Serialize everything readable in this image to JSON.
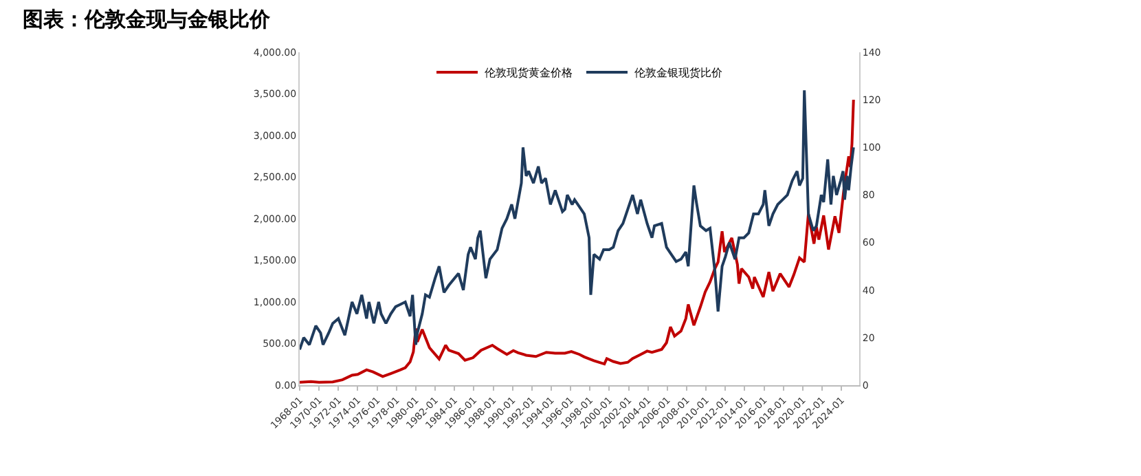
{
  "chart_data": {
    "type": "line",
    "title": "图表：伦敦金现与金银比价",
    "xlim": [
      "1968-01",
      "2025-11"
    ],
    "xticks": [
      {
        "value": "1968-01",
        "label": "1968-01"
      },
      {
        "value": "1970-01",
        "label": "1970-01"
      },
      {
        "value": "1972-01",
        "label": "1972-01"
      },
      {
        "value": "1974-01",
        "label": "1974-01"
      },
      {
        "value": "1976-01",
        "label": "1976-01"
      },
      {
        "value": "1978-01",
        "label": "1978-01"
      },
      {
        "value": "1980-01",
        "label": "1980-01"
      },
      {
        "value": "1982-01",
        "label": "1982-01"
      },
      {
        "value": "1984-01",
        "label": "1984-01"
      },
      {
        "value": "1986-01",
        "label": "1986-01"
      },
      {
        "value": "1988-01",
        "label": "1988-01"
      },
      {
        "value": "1990-01",
        "label": "1990-01"
      },
      {
        "value": "1992-01",
        "label": "1992-01"
      },
      {
        "value": "1994-01",
        "label": "1994-01"
      },
      {
        "value": "1996-01",
        "label": "1996-01"
      },
      {
        "value": "1998-01",
        "label": "1998-01"
      },
      {
        "value": "2000-01",
        "label": "2000-01"
      },
      {
        "value": "2002-01",
        "label": "2002-01"
      },
      {
        "value": "2004-01",
        "label": "2004-01"
      },
      {
        "value": "2006-01",
        "label": "2006-01"
      },
      {
        "value": "2008-01",
        "label": "2008-01"
      },
      {
        "value": "2010-01",
        "label": "2010-01"
      },
      {
        "value": "2012-01",
        "label": "2012-01"
      },
      {
        "value": "2014-01",
        "label": "2014-01"
      },
      {
        "value": "2016-01",
        "label": "2016-01"
      },
      {
        "value": "2018-01",
        "label": "2018-01"
      },
      {
        "value": "2020-01",
        "label": "2020-01"
      },
      {
        "value": "2022-01",
        "label": "2022-01"
      },
      {
        "value": "2024-01",
        "label": "2024-01"
      }
    ],
    "ylim": [
      0,
      4000
    ],
    "yticks": [
      {
        "value": 0,
        "label": "0.00"
      },
      {
        "value": 500,
        "label": "500.00"
      },
      {
        "value": 1000,
        "label": "1,000.00"
      },
      {
        "value": 1500,
        "label": "1,500.00"
      },
      {
        "value": 2000,
        "label": "2,000.00"
      },
      {
        "value": 2500,
        "label": "2,500.00"
      },
      {
        "value": 3000,
        "label": "3,000.00"
      },
      {
        "value": 3500,
        "label": "3,500.00"
      },
      {
        "value": 4000,
        "label": "4,000.00"
      }
    ],
    "y2lim": [
      0,
      140
    ],
    "y2ticks": [
      0,
      20,
      40,
      60,
      80,
      100,
      120,
      140
    ],
    "grid": false,
    "legend": "top",
    "marker": "none",
    "line_style": "solid",
    "series": [
      {
        "name": "伦敦金银现货比价",
        "color": "#1f3b5c",
        "axis": "y2",
        "x": [
          "1968-01",
          "1968-06",
          "1969-01",
          "1969-09",
          "1970-03",
          "1970-06",
          "1971-01",
          "1971-06",
          "1972-01",
          "1972-09",
          "1973-06",
          "1973-12",
          "1974-06",
          "1974-12",
          "1975-03",
          "1975-09",
          "1976-03",
          "1976-06",
          "1976-12",
          "1977-06",
          "1977-12",
          "1978-06",
          "1978-12",
          "1979-06",
          "1979-09",
          "1980-01",
          "1980-03",
          "1980-09",
          "1981-01",
          "1981-06",
          "1982-01",
          "1982-06",
          "1982-12",
          "1983-06",
          "1984-06",
          "1984-12",
          "1985-06",
          "1985-09",
          "1986-03",
          "1986-06",
          "1986-09",
          "1987-04",
          "1987-09",
          "1988-06",
          "1988-12",
          "1989-06",
          "1989-12",
          "1990-04",
          "1990-12",
          "1991-02",
          "1991-06",
          "1991-09",
          "1992-03",
          "1992-09",
          "1993-01",
          "1993-06",
          "1993-12",
          "1994-06",
          "1995-03",
          "1995-06",
          "1995-09",
          "1996-03",
          "1996-06",
          "1996-12",
          "1997-06",
          "1997-12",
          "1998-02",
          "1998-06",
          "1999-01",
          "1999-06",
          "2000-01",
          "2000-06",
          "2000-12",
          "2001-06",
          "2001-12",
          "2002-06",
          "2002-12",
          "2003-04",
          "2003-12",
          "2004-06",
          "2004-09",
          "2005-06",
          "2005-12",
          "2006-06",
          "2006-12",
          "2007-06",
          "2007-12",
          "2008-03",
          "2008-10",
          "2009-01",
          "2009-06",
          "2010-01",
          "2010-06",
          "2010-12",
          "2011-04",
          "2011-09",
          "2012-01",
          "2012-06",
          "2013-01",
          "2013-06",
          "2013-12",
          "2014-06",
          "2014-12",
          "2015-06",
          "2015-12",
          "2016-02",
          "2016-07",
          "2016-12",
          "2017-06",
          "2017-12",
          "2018-06",
          "2018-12",
          "2019-06",
          "2019-09",
          "2020-01",
          "2020-03",
          "2020-06",
          "2020-08",
          "2021-02",
          "2021-06",
          "2021-12",
          "2022-03",
          "2022-08",
          "2022-12",
          "2023-03",
          "2023-07",
          "2023-12",
          "2024-03",
          "2024-05",
          "2024-08",
          "2024-10",
          "2025-01",
          "2025-04"
        ],
        "values": [
          15,
          20,
          17,
          25,
          22,
          17,
          22,
          26,
          28,
          21,
          35,
          30,
          38,
          28,
          35,
          26,
          35,
          30,
          26,
          30,
          33,
          34,
          35,
          29,
          38,
          17,
          22,
          30,
          38,
          37,
          45,
          50,
          39,
          42,
          47,
          40,
          55,
          58,
          53,
          62,
          65,
          45,
          53,
          57,
          66,
          70,
          76,
          70,
          85,
          100,
          88,
          90,
          85,
          92,
          85,
          87,
          76,
          82,
          73,
          74,
          80,
          76,
          78,
          75,
          72,
          62,
          38,
          55,
          53,
          57,
          57,
          58,
          65,
          68,
          74,
          80,
          72,
          78,
          68,
          62,
          67,
          68,
          58,
          55,
          52,
          53,
          56,
          50,
          84,
          77,
          67,
          65,
          66,
          48,
          31,
          50,
          54,
          60,
          53,
          62,
          62,
          64,
          72,
          72,
          76,
          82,
          67,
          72,
          76,
          78,
          80,
          86,
          90,
          84,
          87,
          124,
          93,
          72,
          65,
          67,
          80,
          77,
          95,
          76,
          88,
          80,
          86,
          90,
          78,
          88,
          82,
          92,
          100
        ]
      },
      {
        "name": "伦敦现货黄金价格",
        "color": "#c00000",
        "x": [
          "1968-01",
          "1969-03",
          "1970-01",
          "1971-06",
          "1972-06",
          "1973-06",
          "1974-01",
          "1974-12",
          "1975-08",
          "1976-08",
          "1977-06",
          "1978-06",
          "1978-12",
          "1979-06",
          "1979-10",
          "1980-01",
          "1980-03",
          "1980-09",
          "1981-06",
          "1982-06",
          "1983-02",
          "1983-06",
          "1984-06",
          "1985-02",
          "1985-12",
          "1986-10",
          "1987-12",
          "1988-06",
          "1989-06",
          "1990-02",
          "1990-08",
          "1991-06",
          "1992-06",
          "1993-07",
          "1994-06",
          "1995-06",
          "1996-02",
          "1996-12",
          "1997-06",
          "1998-06",
          "1999-07",
          "1999-10",
          "2000-06",
          "2001-03",
          "2001-12",
          "2002-06",
          "2003-02",
          "2003-12",
          "2004-06",
          "2005-06",
          "2005-12",
          "2006-05",
          "2006-10",
          "2007-06",
          "2007-12",
          "2008-03",
          "2008-10",
          "2009-06",
          "2009-12",
          "2010-06",
          "2010-12",
          "2011-04",
          "2011-09",
          "2011-12",
          "2012-09",
          "2013-04",
          "2013-06",
          "2013-09",
          "2014-06",
          "2014-11",
          "2015-01",
          "2015-12",
          "2016-07",
          "2016-12",
          "2017-09",
          "2018-08",
          "2019-02",
          "2019-09",
          "2020-03",
          "2020-08",
          "2021-03",
          "2021-06",
          "2021-09",
          "2022-03",
          "2022-09",
          "2023-05",
          "2023-10",
          "2024-04",
          "2024-10",
          "2024-12",
          "2025-02",
          "2025-04"
        ],
        "values": [
          35,
          43,
          35,
          40,
          65,
          120,
          130,
          185,
          160,
          105,
          140,
          185,
          210,
          280,
          400,
          683,
          520,
          670,
          450,
          315,
          480,
          420,
          380,
          300,
          330,
          420,
          480,
          440,
          370,
          415,
          390,
          360,
          345,
          395,
          385,
          385,
          405,
          370,
          340,
          295,
          255,
          320,
          285,
          260,
          275,
          320,
          360,
          410,
          395,
          430,
          510,
          700,
          590,
          650,
          800,
          970,
          720,
          940,
          1120,
          1240,
          1400,
          1480,
          1850,
          1600,
          1770,
          1450,
          1220,
          1400,
          1300,
          1160,
          1300,
          1060,
          1360,
          1130,
          1340,
          1180,
          1330,
          1530,
          1480,
          2060,
          1700,
          1900,
          1750,
          2040,
          1630,
          2030,
          1830,
          2350,
          2750,
          2620,
          2900,
          3430
        ]
      }
    ]
  }
}
